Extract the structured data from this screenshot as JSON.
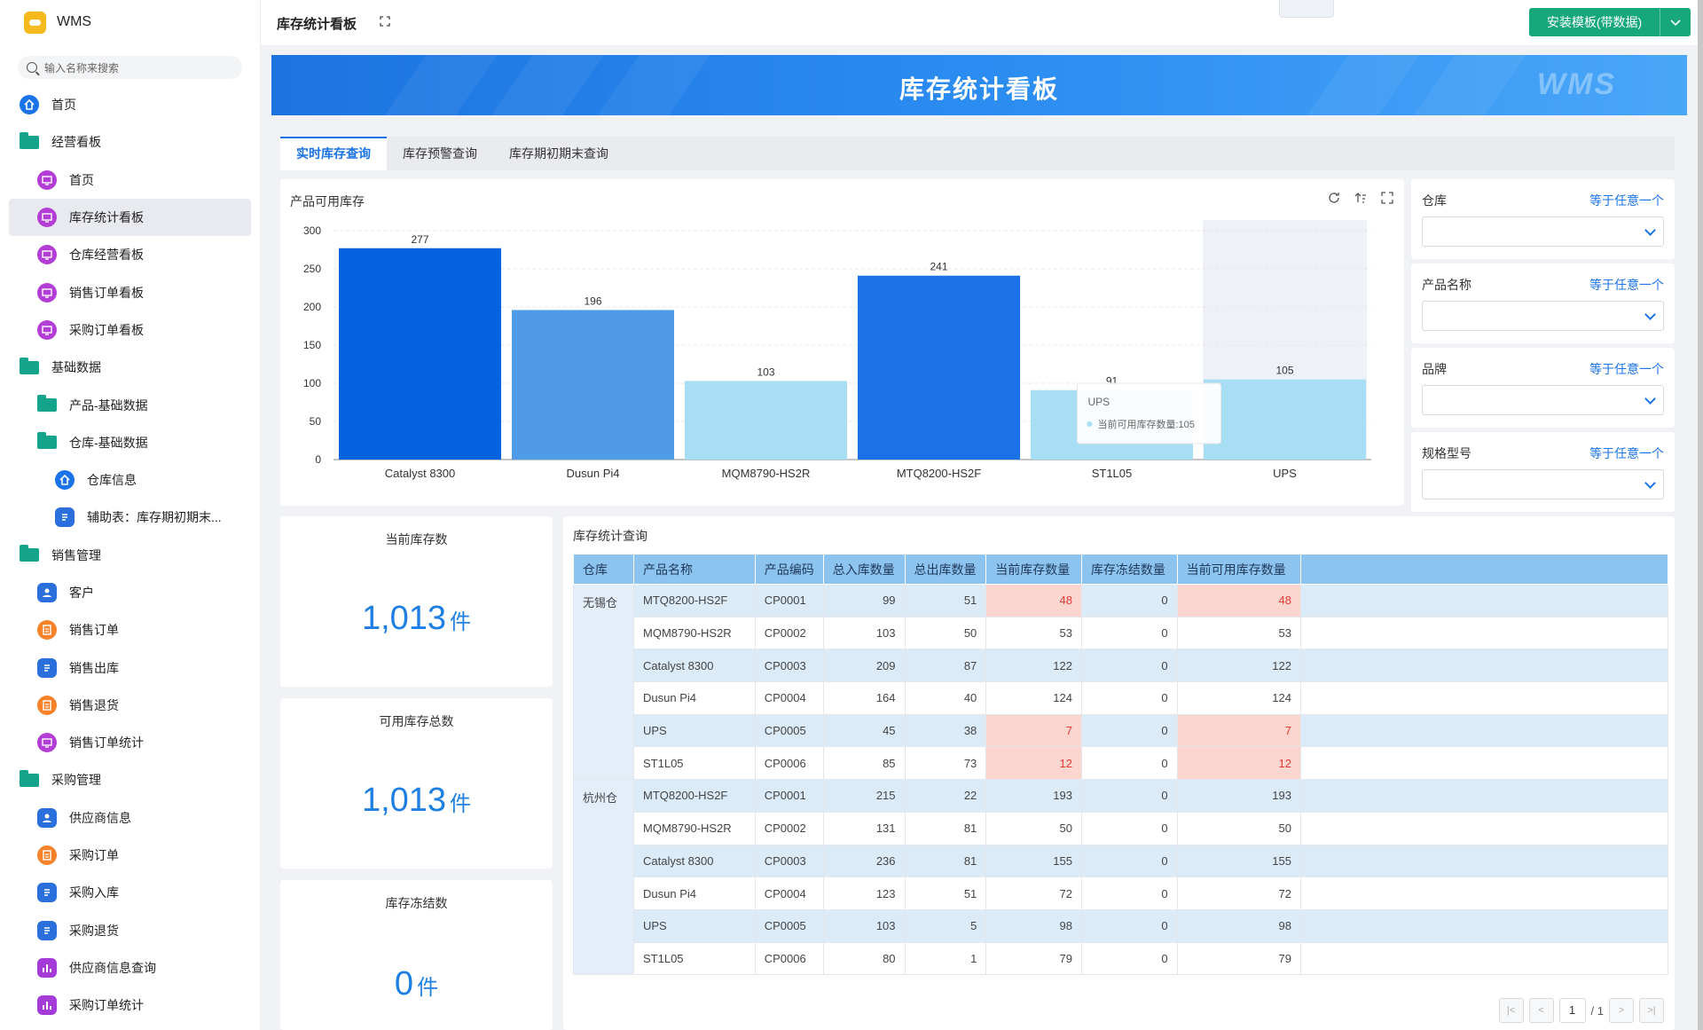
{
  "app": {
    "name": "WMS"
  },
  "sidebar": {
    "search_placeholder": "输入名称来搜索",
    "items": [
      {
        "label": "首页",
        "level": 0,
        "icon": "home-icon"
      },
      {
        "label": "经营看板",
        "level": 0,
        "icon": "folder-icon"
      },
      {
        "label": "首页",
        "level": 1,
        "icon": "dashboard-icon"
      },
      {
        "label": "库存统计看板",
        "level": 1,
        "icon": "dashboard-icon",
        "active": true
      },
      {
        "label": "仓库经营看板",
        "level": 1,
        "icon": "dashboard-icon"
      },
      {
        "label": "销售订单看板",
        "level": 1,
        "icon": "dashboard-icon"
      },
      {
        "label": "采购订单看板",
        "level": 1,
        "icon": "dashboard-icon"
      },
      {
        "label": "基础数据",
        "level": 0,
        "icon": "folder-icon"
      },
      {
        "label": "产品-基础数据",
        "level": 1,
        "icon": "folder-icon"
      },
      {
        "label": "仓库-基础数据",
        "level": 1,
        "icon": "folder-open-icon"
      },
      {
        "label": "仓库信息",
        "level": 2,
        "icon": "home-icon"
      },
      {
        "label": "辅助表：库存期初期末...",
        "level": 2,
        "icon": "document-icon"
      },
      {
        "label": "销售管理",
        "level": 0,
        "icon": "folder-icon"
      },
      {
        "label": "客户",
        "level": 1,
        "icon": "user-icon"
      },
      {
        "label": "销售订单",
        "level": 1,
        "icon": "order-icon"
      },
      {
        "label": "销售出库",
        "level": 1,
        "icon": "document-icon"
      },
      {
        "label": "销售退货",
        "level": 1,
        "icon": "order-icon"
      },
      {
        "label": "销售订单统计",
        "level": 1,
        "icon": "dashboard-icon"
      },
      {
        "label": "采购管理",
        "level": 0,
        "icon": "folder-icon"
      },
      {
        "label": "供应商信息",
        "level": 1,
        "icon": "user-icon"
      },
      {
        "label": "采购订单",
        "level": 1,
        "icon": "order-icon"
      },
      {
        "label": "采购入库",
        "level": 1,
        "icon": "document-icon"
      },
      {
        "label": "采购退货",
        "level": 1,
        "icon": "document-icon"
      },
      {
        "label": "供应商信息查询",
        "level": 1,
        "icon": "bar-chart-icon"
      },
      {
        "label": "采购订单统计",
        "level": 1,
        "icon": "bar-chart-icon"
      }
    ]
  },
  "header": {
    "title": "库存统计看板",
    "install_button": "安装模板(带数据)"
  },
  "banner": {
    "title": "库存统计看板",
    "watermark": "WMS"
  },
  "tabs": [
    "实时库存查询",
    "库存预警查询",
    "库存期初期末查询"
  ],
  "chart_card": {
    "title": "产品可用库存"
  },
  "chart_data": {
    "type": "bar",
    "title": "产品可用库存",
    "categories": [
      "Catalyst 8300",
      "Dusun Pi4",
      "MQM8790-HS2R",
      "MTQ8200-HS2F",
      "ST1L05",
      "UPS"
    ],
    "values": [
      277,
      196,
      103,
      241,
      91,
      105
    ],
    "ylim": [
      0,
      300
    ],
    "yticks": [
      0,
      50,
      100,
      150,
      200,
      250,
      300
    ],
    "data_labels": [
      "277",
      "196",
      "103",
      "241",
      "91",
      "105"
    ],
    "colors": [
      "#0563e0",
      "#509be8",
      "#a8def3",
      "#1b72e8",
      "#a8def3",
      "#a8def3"
    ],
    "highlight_index": 5,
    "tooltip": {
      "title": "UPS",
      "text": "当前可用库存数量:105"
    }
  },
  "filters": [
    {
      "label": "仓库",
      "op": "等于任意一个"
    },
    {
      "label": "产品名称",
      "op": "等于任意一个"
    },
    {
      "label": "品牌",
      "op": "等于任意一个"
    },
    {
      "label": "规格型号",
      "op": "等于任意一个"
    }
  ],
  "stats": [
    {
      "title": "当前库存数",
      "value": "1,013",
      "unit": "件"
    },
    {
      "title": "可用库存总数",
      "value": "1,013",
      "unit": "件"
    },
    {
      "title": "库存冻结数",
      "value": "0",
      "unit": "件"
    }
  ],
  "table": {
    "title": "库存统计查询",
    "columns": [
      "仓库",
      "产品名称",
      "产品编码",
      "总入库数量",
      "总出库数量",
      "当前库存数量",
      "库存冻结数量",
      "当前可用库存数量"
    ],
    "groups": [
      {
        "warehouse": "无锡仓",
        "rows": [
          [
            "MTQ8200-HS2F",
            "CP0001",
            "99",
            "51",
            "48",
            "0",
            "48",
            true
          ],
          [
            "MQM8790-HS2R",
            "CP0002",
            "103",
            "50",
            "53",
            "0",
            "53",
            false
          ],
          [
            "Catalyst 8300",
            "CP0003",
            "209",
            "87",
            "122",
            "0",
            "122",
            false
          ],
          [
            "Dusun Pi4",
            "CP0004",
            "164",
            "40",
            "124",
            "0",
            "124",
            false
          ],
          [
            "UPS",
            "CP0005",
            "45",
            "38",
            "7",
            "0",
            "7",
            true
          ],
          [
            "ST1L05",
            "CP0006",
            "85",
            "73",
            "12",
            "0",
            "12",
            true
          ]
        ]
      },
      {
        "warehouse": "杭州仓",
        "rows": [
          [
            "MTQ8200-HS2F",
            "CP0001",
            "215",
            "22",
            "193",
            "0",
            "193",
            false
          ],
          [
            "MQM8790-HS2R",
            "CP0002",
            "131",
            "81",
            "50",
            "0",
            "50",
            false
          ],
          [
            "Catalyst 8300",
            "CP0003",
            "236",
            "81",
            "155",
            "0",
            "155",
            false
          ],
          [
            "Dusun Pi4",
            "CP0004",
            "123",
            "51",
            "72",
            "0",
            "72",
            false
          ],
          [
            "UPS",
            "CP0005",
            "103",
            "5",
            "98",
            "0",
            "98",
            false
          ],
          [
            "ST1L05",
            "CP0006",
            "80",
            "1",
            "79",
            "0",
            "79",
            false
          ]
        ]
      }
    ],
    "pager": {
      "page": "1",
      "total": "/ 1"
    }
  }
}
